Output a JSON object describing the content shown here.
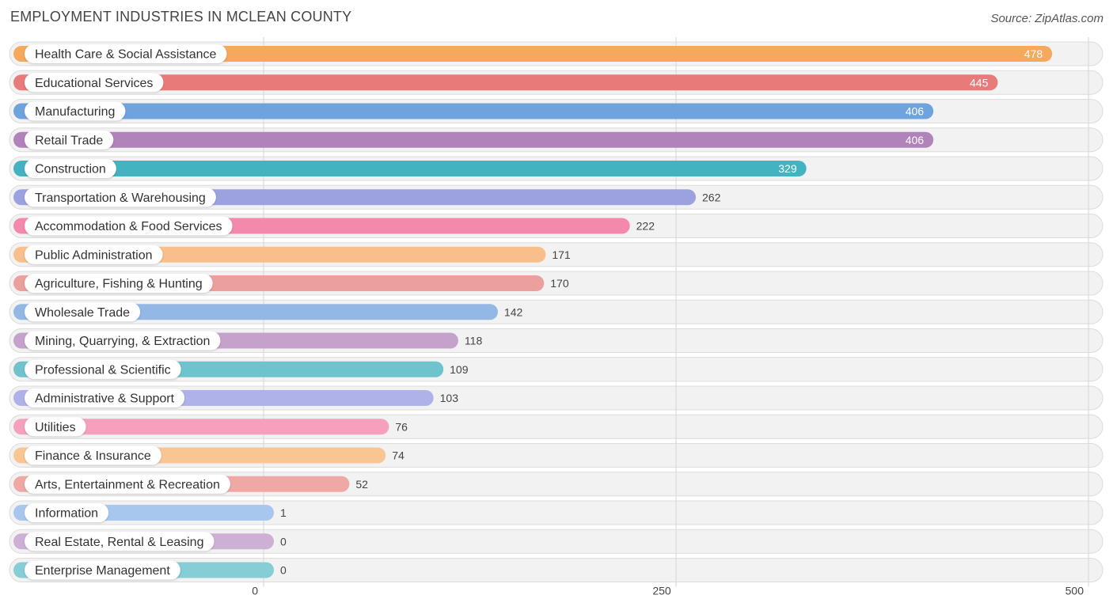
{
  "header": {
    "title": "EMPLOYMENT INDUSTRIES IN MCLEAN COUNTY",
    "source": "Source: ZipAtlas.com"
  },
  "chart_data": {
    "type": "bar",
    "orientation": "horizontal",
    "title": "EMPLOYMENT INDUSTRIES IN MCLEAN COUNTY",
    "xlabel": "",
    "ylabel": "",
    "xlim": [
      0,
      500
    ],
    "ticks": [
      0,
      250,
      500
    ],
    "tick_labels": [
      "0",
      "250",
      "500"
    ],
    "grid": true,
    "categories": [
      "Health Care & Social Assistance",
      "Educational Services",
      "Manufacturing",
      "Retail Trade",
      "Construction",
      "Transportation & Warehousing",
      "Accommodation & Food Services",
      "Public Administration",
      "Agriculture, Fishing & Hunting",
      "Wholesale Trade",
      "Mining, Quarrying, & Extraction",
      "Professional & Scientific",
      "Administrative & Support",
      "Utilities",
      "Finance & Insurance",
      "Arts, Entertainment & Recreation",
      "Information",
      "Real Estate, Rental & Leasing",
      "Enterprise Management"
    ],
    "values": [
      478,
      445,
      406,
      406,
      329,
      262,
      222,
      171,
      170,
      142,
      118,
      109,
      103,
      76,
      74,
      52,
      1,
      0,
      0
    ],
    "colors": [
      "#f6a85c",
      "#e87b79",
      "#6fa3de",
      "#b083ba",
      "#43b3c1",
      "#9ca2e0",
      "#f589ab",
      "#f8bf8c",
      "#eba09d",
      "#93b8e6",
      "#c5a2cc",
      "#6fc3cd",
      "#aeb2e8",
      "#f5a1bd",
      "#f9c693",
      "#f0a8a5",
      "#a8c7ee",
      "#cdb0d4",
      "#86cdd5"
    ]
  }
}
